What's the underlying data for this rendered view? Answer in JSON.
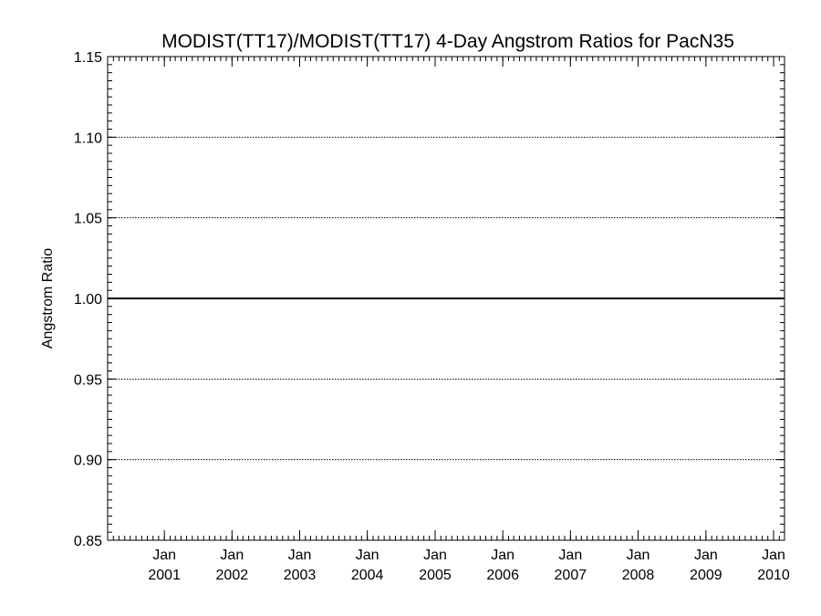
{
  "chart_data": {
    "type": "line",
    "title": "MODIST(TT17)/MODIST(TT17) 4-Day Angstrom Ratios for PacN35",
    "ylabel": "Angstrom Ratio",
    "xlabel": "",
    "ylim": [
      0.85,
      1.15
    ],
    "yticks": [
      "0.85",
      "0.90",
      "0.95",
      "1.00",
      "1.05",
      "1.10",
      "1.15"
    ],
    "xlim": [
      "2000-03-01",
      "2010-03-01"
    ],
    "xticks": [
      {
        "month": "Jan",
        "year": "2001",
        "date": "2001-01-01"
      },
      {
        "month": "Jan",
        "year": "2002",
        "date": "2002-01-01"
      },
      {
        "month": "Jan",
        "year": "2003",
        "date": "2003-01-01"
      },
      {
        "month": "Jan",
        "year": "2004",
        "date": "2004-01-01"
      },
      {
        "month": "Jan",
        "year": "2005",
        "date": "2005-01-01"
      },
      {
        "month": "Jan",
        "year": "2006",
        "date": "2006-01-01"
      },
      {
        "month": "Jan",
        "year": "2007",
        "date": "2007-01-01"
      },
      {
        "month": "Jan",
        "year": "2008",
        "date": "2008-01-01"
      },
      {
        "month": "Jan",
        "year": "2009",
        "date": "2009-01-01"
      },
      {
        "month": "Jan",
        "year": "2010",
        "date": "2010-01-01"
      }
    ],
    "grid": {
      "y": "dotted",
      "x": "none"
    },
    "reference_line": {
      "y": 1.0,
      "style": "solid"
    },
    "series": [
      {
        "x": [
          "2000-03-01",
          "2010-03-01"
        ],
        "y": [
          1.0,
          1.0
        ]
      }
    ]
  }
}
